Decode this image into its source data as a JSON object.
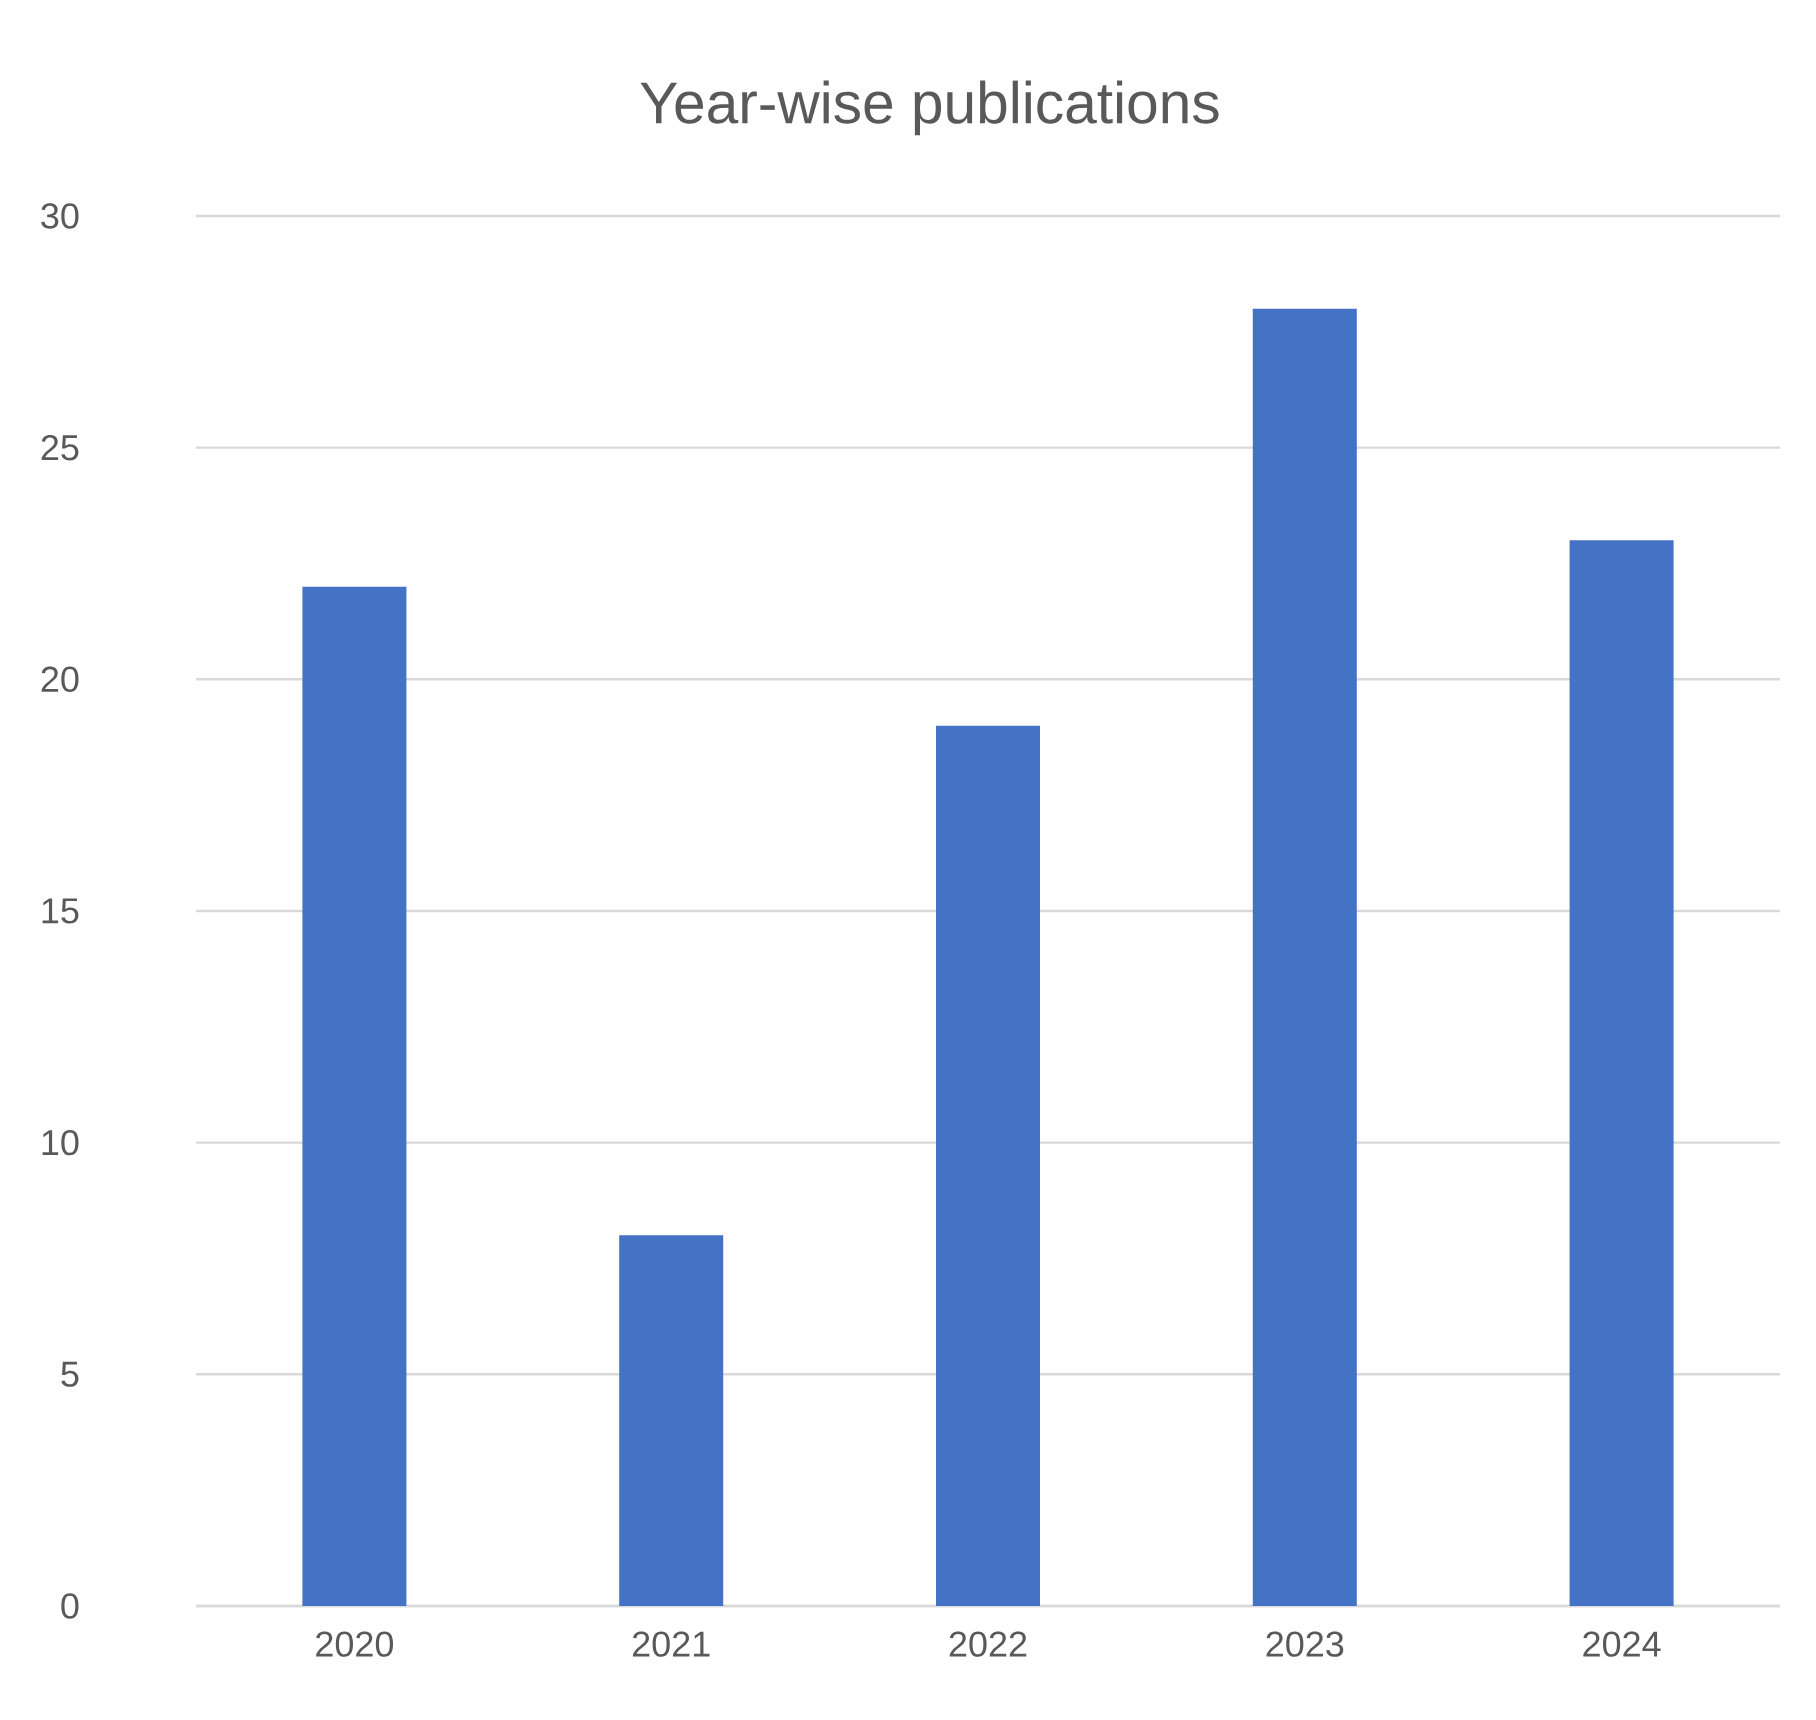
{
  "chart_data": {
    "type": "bar",
    "title": "Year-wise publications",
    "categories": [
      "2020",
      "2021",
      "2022",
      "2023",
      "2024"
    ],
    "values": [
      22,
      8,
      19,
      28,
      23
    ],
    "color": "#4472c4",
    "ylim": [
      0,
      30
    ],
    "yticks": [
      0,
      5,
      10,
      15,
      20,
      25,
      30
    ],
    "grid": "y"
  }
}
